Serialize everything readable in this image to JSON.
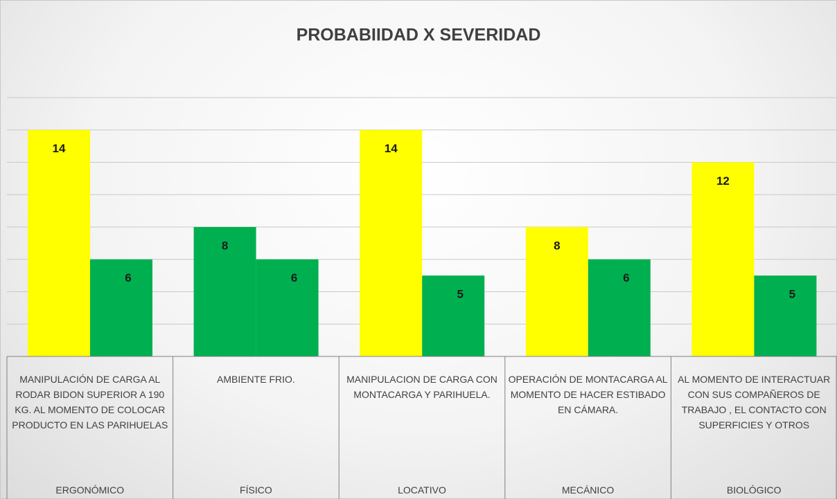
{
  "chart_data": {
    "type": "bar",
    "title": "PROBABIIDAD X SEVERIDAD",
    "categories": [
      "MANIPULACIÓN DE CARGA AL RODAR BIDON SUPERIOR A 190 KG. AL MOMENTO DE COLOCAR PRODUCTO EN LAS PARIHUELAS",
      "AMBIENTE FRIO.",
      "MANIPULACION DE CARGA CON MONTACARGA Y PARIHUELA.",
      "OPERACIÓN DE MONTACARGA AL MOMENTO DE HACER ESTIBADO EN CÁMARA.",
      "AL MOMENTO DE INTERACTUAR CON SUS COMPAÑEROS DE TRABAJO , EL CONTACTO CON SUPERFICIES Y OTROS"
    ],
    "groups": [
      "ERGONÓMICO",
      "FÍSICO",
      "LOCATIVO",
      "MECÁNICO",
      "BIOLÓGICO"
    ],
    "series": [
      {
        "colors": [
          "#ffff00",
          "#00b050",
          "#ffff00",
          "#ffff00",
          "#ffff00"
        ],
        "values": [
          14,
          8,
          14,
          8,
          12
        ]
      },
      {
        "colors": [
          "#00b050",
          "#00b050",
          "#00b050",
          "#00b050",
          "#00b050"
        ],
        "values": [
          6,
          6,
          5,
          6,
          5
        ]
      }
    ],
    "ylim": [
      0,
      16
    ],
    "yticks": [
      0,
      2,
      4,
      6,
      8,
      10,
      12,
      14,
      16
    ],
    "grid": true
  }
}
